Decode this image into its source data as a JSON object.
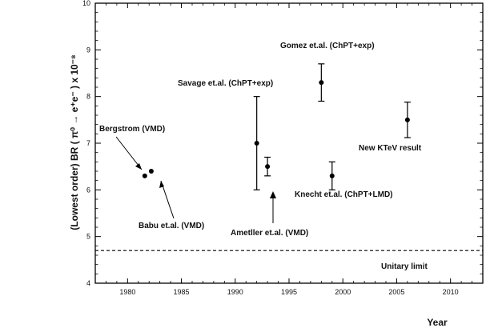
{
  "chart_data": {
    "type": "scatter",
    "xlabel": "Year",
    "ylabel": "(Lowest order) BR ( π⁰ → e⁺e⁻ ) x 10⁻⁸",
    "xlim": [
      1977,
      2013
    ],
    "ylim": [
      4,
      10
    ],
    "xticks": [
      1980,
      1985,
      1990,
      1995,
      2000,
      2005,
      2010
    ],
    "yticks": [
      4,
      5,
      6,
      7,
      8,
      9,
      10
    ],
    "grid": false,
    "points": [
      {
        "label": "Bergstrom (VMD)",
        "x": 1981.6,
        "y": 6.3,
        "err": null
      },
      {
        "label": "Babu et.al. (VMD)",
        "x": 1982.2,
        "y": 6.4,
        "err": null
      },
      {
        "label": "Savage et.al. (ChPT+exp)",
        "x": 1992,
        "y": 7.0,
        "err": 1.0
      },
      {
        "label": "Ametller et.al. (VMD)",
        "x": 1993,
        "y": 6.5,
        "err": 0.2
      },
      {
        "label": "Gomez et.al. (ChPT+exp)",
        "x": 1998,
        "y": 8.3,
        "err": 0.4
      },
      {
        "label": "Knecht et.al. (ChPT+LMD)",
        "x": 1999,
        "y": 6.3,
        "err": 0.3
      },
      {
        "label": "New KTeV result",
        "x": 2006,
        "y": 7.5,
        "err": 0.38
      }
    ],
    "reference_line": {
      "label": "Unitary limit",
      "y": 4.7,
      "style": "dashed"
    }
  }
}
